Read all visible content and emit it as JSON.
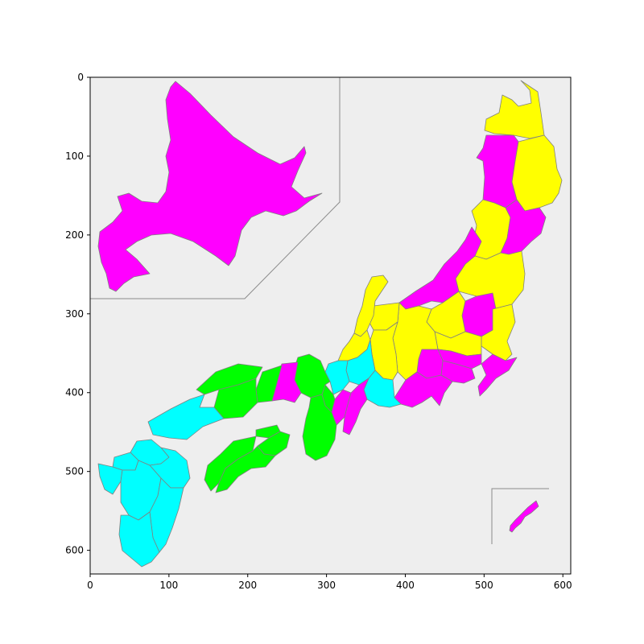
{
  "map": {
    "x_axis": {
      "range": [
        0,
        610
      ],
      "ticks": [
        0,
        100,
        200,
        300,
        400,
        500,
        600
      ],
      "labels": [
        "0",
        "100",
        "200",
        "300",
        "400",
        "500",
        "600"
      ]
    },
    "y_axis": {
      "range": [
        0,
        630
      ],
      "inverted": true,
      "ticks": [
        0,
        100,
        200,
        300,
        400,
        500,
        600
      ],
      "labels": [
        "0",
        "100",
        "200",
        "300",
        "400",
        "500",
        "600"
      ]
    },
    "background_color": "#eeeeee",
    "border_color": "#808080",
    "palette": {
      "magenta": "#ff00ff",
      "yellow": "#ffff00",
      "cyan": "#00ffff",
      "green": "#00ff00"
    },
    "insets": [
      "hokkaido",
      "okinawa"
    ]
  }
}
